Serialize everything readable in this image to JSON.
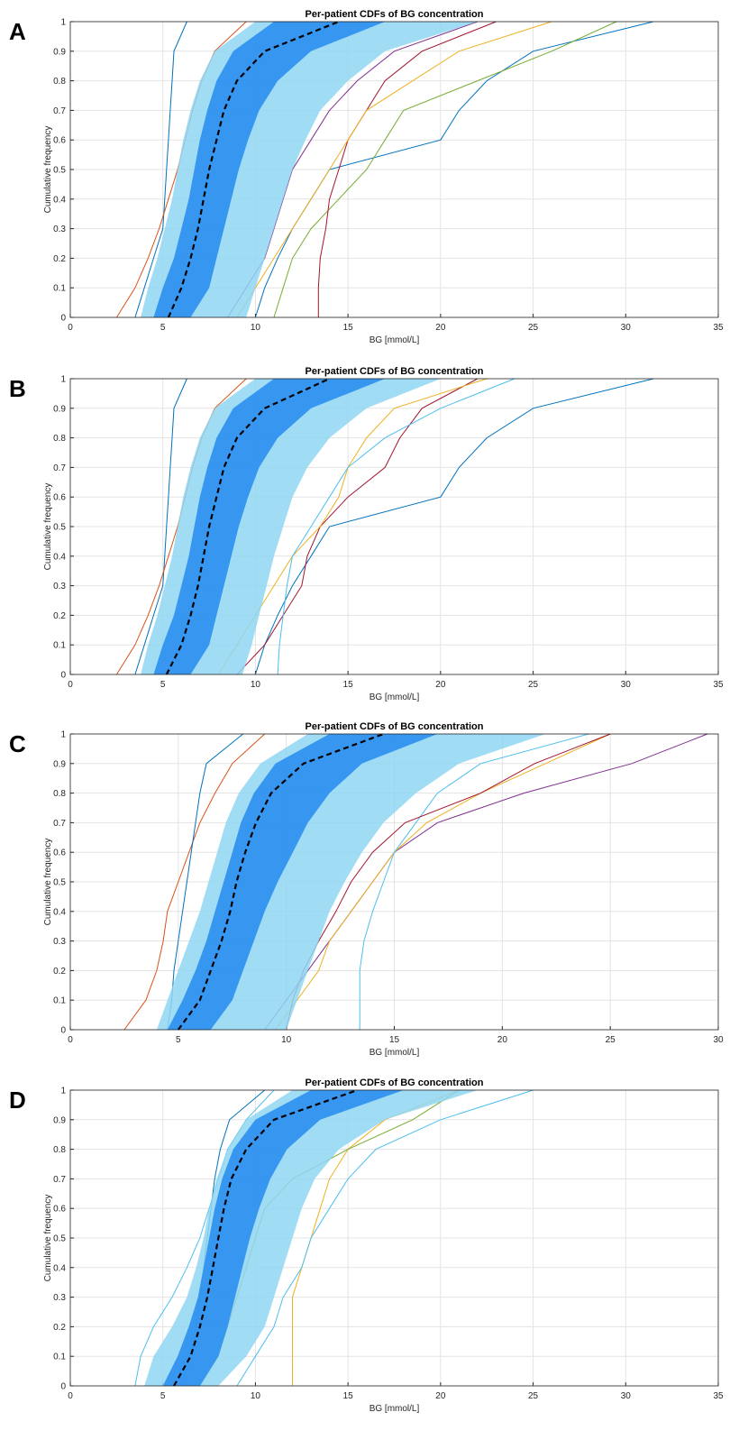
{
  "chart_data": [
    {
      "type": "line",
      "panel_label": "A",
      "title": "Per-patient CDFs of BG concentration",
      "x_label": "BG [mmol/L]",
      "y_label": "Cumulative frequency",
      "xlim": [
        0,
        35
      ],
      "xticks": [
        0,
        5,
        10,
        15,
        20,
        25,
        30,
        35
      ],
      "ylim": [
        0,
        1
      ],
      "yticks": [
        0,
        0.1,
        0.2,
        0.3,
        0.4,
        0.5,
        0.6,
        0.7,
        0.8,
        0.9,
        1
      ],
      "grid": true,
      "y": [
        0,
        0.1,
        0.2,
        0.3,
        0.4,
        0.5,
        0.6,
        0.7,
        0.8,
        0.9,
        1
      ],
      "series": [
        {
          "color": "#0072BD",
          "x": [
            10,
            10.5,
            11.2,
            12,
            13,
            14,
            20,
            21,
            22.5,
            25,
            31.5
          ]
        },
        {
          "color": "#77AC30",
          "x": [
            11,
            11.5,
            12,
            13,
            14.5,
            16,
            17,
            18,
            22,
            26,
            29.5
          ]
        },
        {
          "color": "#A2142F",
          "x": [
            13.4,
            13.4,
            13.5,
            13.8,
            14,
            14.5,
            15,
            16,
            17,
            19,
            23
          ]
        },
        {
          "color": "#0072BD",
          "x": [
            3.5,
            4,
            4.5,
            5,
            5.1,
            5.2,
            5.3,
            5.4,
            5.5,
            5.6,
            6.3
          ]
        },
        {
          "color": "#D95319",
          "x": [
            2.5,
            3.5,
            4.2,
            4.8,
            5.3,
            5.8,
            6.2,
            6.6,
            7.1,
            7.8,
            9.5
          ]
        },
        {
          "color": "#7E2F8E",
          "x": [
            8.5,
            9.5,
            10.5,
            11,
            11.5,
            12,
            13,
            14,
            15.5,
            17.5,
            22
          ]
        },
        {
          "color": "#EDB120",
          "x": [
            9,
            10,
            11,
            12,
            13,
            14,
            15,
            16,
            18.5,
            21,
            26
          ]
        }
      ],
      "bands": [
        {
          "color": "#8fd6f2",
          "low": [
            3.8,
            4.2,
            4.7,
            5.1,
            5.5,
            5.8,
            6.1,
            6.5,
            7,
            7.8,
            10
          ],
          "high": [
            9.5,
            10,
            10.5,
            11,
            11.5,
            12,
            12.7,
            13.5,
            15,
            17,
            22
          ]
        },
        {
          "color": "#2a8ef0",
          "low": [
            4.5,
            5,
            5.6,
            6,
            6.4,
            6.7,
            7,
            7.4,
            7.9,
            8.8,
            11
          ],
          "high": [
            6.5,
            7.5,
            7.9,
            8.3,
            8.7,
            9.1,
            9.6,
            10.2,
            11.2,
            13,
            17
          ]
        }
      ],
      "median": {
        "color": "#000000",
        "x": [
          5.3,
          6,
          6.5,
          6.9,
          7.2,
          7.5,
          7.9,
          8.3,
          9,
          10.5,
          14.5
        ]
      }
    },
    {
      "type": "line",
      "panel_label": "B",
      "title": "Per-patient CDFs of BG concentration",
      "x_label": "BG [mmol/L]",
      "y_label": "Cumulative frequency",
      "xlim": [
        0,
        35
      ],
      "xticks": [
        0,
        5,
        10,
        15,
        20,
        25,
        30,
        35
      ],
      "ylim": [
        0,
        1
      ],
      "yticks": [
        0,
        0.1,
        0.2,
        0.3,
        0.4,
        0.5,
        0.6,
        0.7,
        0.8,
        0.9,
        1
      ],
      "grid": true,
      "y": [
        0,
        0.1,
        0.2,
        0.3,
        0.4,
        0.5,
        0.6,
        0.7,
        0.8,
        0.9,
        1
      ],
      "series": [
        {
          "color": "#0072BD",
          "x": [
            10,
            10.5,
            11.2,
            12,
            13,
            14,
            20,
            21,
            22.5,
            25,
            31.5
          ]
        },
        {
          "color": "#A2142F",
          "x": [
            9,
            10.5,
            11.5,
            12.5,
            12.8,
            13.5,
            15,
            17,
            17.8,
            19,
            22
          ]
        },
        {
          "color": "#EDB120",
          "x": [
            8,
            9,
            10,
            11,
            12,
            13.5,
            14.5,
            15,
            16,
            17.5,
            22.5
          ]
        },
        {
          "color": "#4DBEEE",
          "x": [
            11.2,
            11.3,
            11.5,
            11.7,
            12,
            13,
            14,
            15,
            17,
            20,
            24
          ]
        },
        {
          "color": "#0072BD",
          "x": [
            3.5,
            4,
            4.5,
            5,
            5.1,
            5.2,
            5.3,
            5.4,
            5.5,
            5.6,
            6.3
          ]
        },
        {
          "color": "#D95319",
          "x": [
            2.5,
            3.5,
            4.2,
            4.8,
            5.3,
            5.8,
            6.2,
            6.6,
            7.1,
            7.8,
            9.5
          ]
        }
      ],
      "bands": [
        {
          "color": "#8fd6f2",
          "low": [
            3.8,
            4.2,
            4.7,
            5.1,
            5.5,
            5.8,
            6.1,
            6.5,
            7,
            7.8,
            10
          ],
          "high": [
            9.3,
            9.8,
            10.2,
            10.6,
            11,
            11.5,
            12,
            12.8,
            14,
            16,
            20
          ]
        },
        {
          "color": "#2a8ef0",
          "low": [
            4.5,
            5,
            5.6,
            6,
            6.4,
            6.7,
            7,
            7.4,
            7.9,
            8.8,
            11
          ],
          "high": [
            6.5,
            7.5,
            7.9,
            8.3,
            8.7,
            9.1,
            9.6,
            10.2,
            11.2,
            13,
            17
          ]
        }
      ],
      "median": {
        "color": "#000000",
        "x": [
          5.2,
          6,
          6.5,
          6.9,
          7.2,
          7.5,
          7.9,
          8.3,
          9,
          10.5,
          14
        ]
      }
    },
    {
      "type": "line",
      "panel_label": "C",
      "title": "Per-patient CDFs of BG concentration",
      "x_label": "BG [mmol/L]",
      "y_label": "Cumulative frequency",
      "xlim": [
        0,
        30
      ],
      "xticks": [
        0,
        5,
        10,
        15,
        20,
        25,
        30
      ],
      "ylim": [
        0,
        1
      ],
      "yticks": [
        0,
        0.1,
        0.2,
        0.3,
        0.4,
        0.5,
        0.6,
        0.7,
        0.8,
        0.9,
        1
      ],
      "grid": true,
      "y": [
        0,
        0.1,
        0.2,
        0.3,
        0.4,
        0.5,
        0.6,
        0.7,
        0.8,
        0.9,
        1
      ],
      "series": [
        {
          "color": "#7E2F8E",
          "x": [
            9,
            10,
            11,
            12,
            13,
            14,
            15,
            17,
            21,
            26,
            29.5
          ]
        },
        {
          "color": "#EDB120",
          "x": [
            9.5,
            10.5,
            11.5,
            12,
            13,
            14,
            15,
            16.5,
            19,
            22,
            25
          ]
        },
        {
          "color": "#4DBEEE",
          "x": [
            13.4,
            13.4,
            13.4,
            13.6,
            14,
            14.5,
            15,
            16,
            17,
            19,
            24
          ]
        },
        {
          "color": "#A2142F",
          "x": [
            10,
            10.3,
            10.8,
            11.5,
            12.3,
            13,
            14,
            15.5,
            19,
            21.5,
            25
          ]
        },
        {
          "color": "#D95319",
          "x": [
            2.5,
            3.5,
            4,
            4.3,
            4.5,
            5,
            5.5,
            6,
            6.7,
            7.5,
            9
          ]
        },
        {
          "color": "#0072BD",
          "x": [
            4.5,
            4.7,
            4.8,
            5,
            5.2,
            5.4,
            5.6,
            5.8,
            6,
            6.3,
            8
          ]
        }
      ],
      "bands": [
        {
          "color": "#8fd6f2",
          "low": [
            4,
            4.5,
            5,
            5.5,
            6,
            6.4,
            6.8,
            7.2,
            7.8,
            8.8,
            11
          ],
          "high": [
            10,
            10.5,
            11,
            11.5,
            12,
            12.7,
            13.5,
            14.5,
            16,
            18,
            22
          ]
        },
        {
          "color": "#2a8ef0",
          "low": [
            4.5,
            5.2,
            5.8,
            6.3,
            6.7,
            7.1,
            7.5,
            7.9,
            8.5,
            9.5,
            12
          ],
          "high": [
            6.5,
            7.5,
            8,
            8.5,
            9,
            9.6,
            10.3,
            11,
            12,
            13.5,
            17
          ]
        }
      ],
      "median": {
        "color": "#000000",
        "x": [
          5,
          6,
          6.5,
          7,
          7.4,
          7.7,
          8.1,
          8.6,
          9.3,
          10.8,
          14.5
        ]
      }
    },
    {
      "type": "line",
      "panel_label": "D",
      "title": "Per-patient CDFs of BG concentration",
      "x_label": "BG [mmol/L]",
      "y_label": "Cumulative frequency",
      "xlim": [
        0,
        35
      ],
      "xticks": [
        0,
        5,
        10,
        15,
        20,
        25,
        30,
        35
      ],
      "ylim": [
        0,
        1
      ],
      "yticks": [
        0,
        0.1,
        0.2,
        0.3,
        0.4,
        0.5,
        0.6,
        0.7,
        0.8,
        0.9,
        1
      ],
      "grid": true,
      "y": [
        0,
        0.1,
        0.2,
        0.3,
        0.4,
        0.5,
        0.6,
        0.7,
        0.8,
        0.9,
        1
      ],
      "series": [
        {
          "color": "#EDB120",
          "x": [
            12,
            12,
            12,
            12,
            12.5,
            13,
            13.5,
            14,
            15,
            17,
            21
          ]
        },
        {
          "color": "#77AC30",
          "x": [
            7,
            8,
            8.5,
            9,
            9.5,
            10,
            10.5,
            12,
            15,
            18.5,
            21
          ]
        },
        {
          "color": "#4DBEEE",
          "x": [
            3.5,
            3.8,
            4.5,
            5.5,
            6.3,
            7,
            7.5,
            8,
            8.5,
            9.5,
            11
          ]
        },
        {
          "color": "#4DBEEE",
          "x": [
            9,
            10,
            11,
            11.5,
            12.5,
            13,
            14,
            15,
            16.5,
            20,
            25
          ]
        },
        {
          "color": "#0072BD",
          "x": [
            6,
            6.5,
            6.8,
            7,
            7.2,
            7.4,
            7.6,
            7.8,
            8.1,
            8.6,
            10.5
          ]
        }
      ],
      "bands": [
        {
          "color": "#8fd6f2",
          "low": [
            4,
            4.5,
            5.5,
            6.3,
            6.8,
            7.2,
            7.5,
            7.9,
            8.5,
            9.5,
            12
          ],
          "high": [
            8,
            9.5,
            10.5,
            11,
            11.5,
            12,
            12.5,
            13.2,
            14.5,
            17,
            22
          ]
        },
        {
          "color": "#2a8ef0",
          "low": [
            5,
            5.8,
            6.4,
            6.9,
            7.2,
            7.5,
            7.8,
            8.2,
            8.8,
            10,
            13
          ],
          "high": [
            7,
            8,
            8.5,
            8.9,
            9.3,
            9.7,
            10.2,
            10.8,
            11.7,
            13.5,
            18
          ]
        }
      ],
      "median": {
        "color": "#000000",
        "x": [
          5.6,
          6.5,
          7,
          7.4,
          7.7,
          8,
          8.3,
          8.7,
          9.5,
          11,
          15.5
        ]
      }
    }
  ]
}
